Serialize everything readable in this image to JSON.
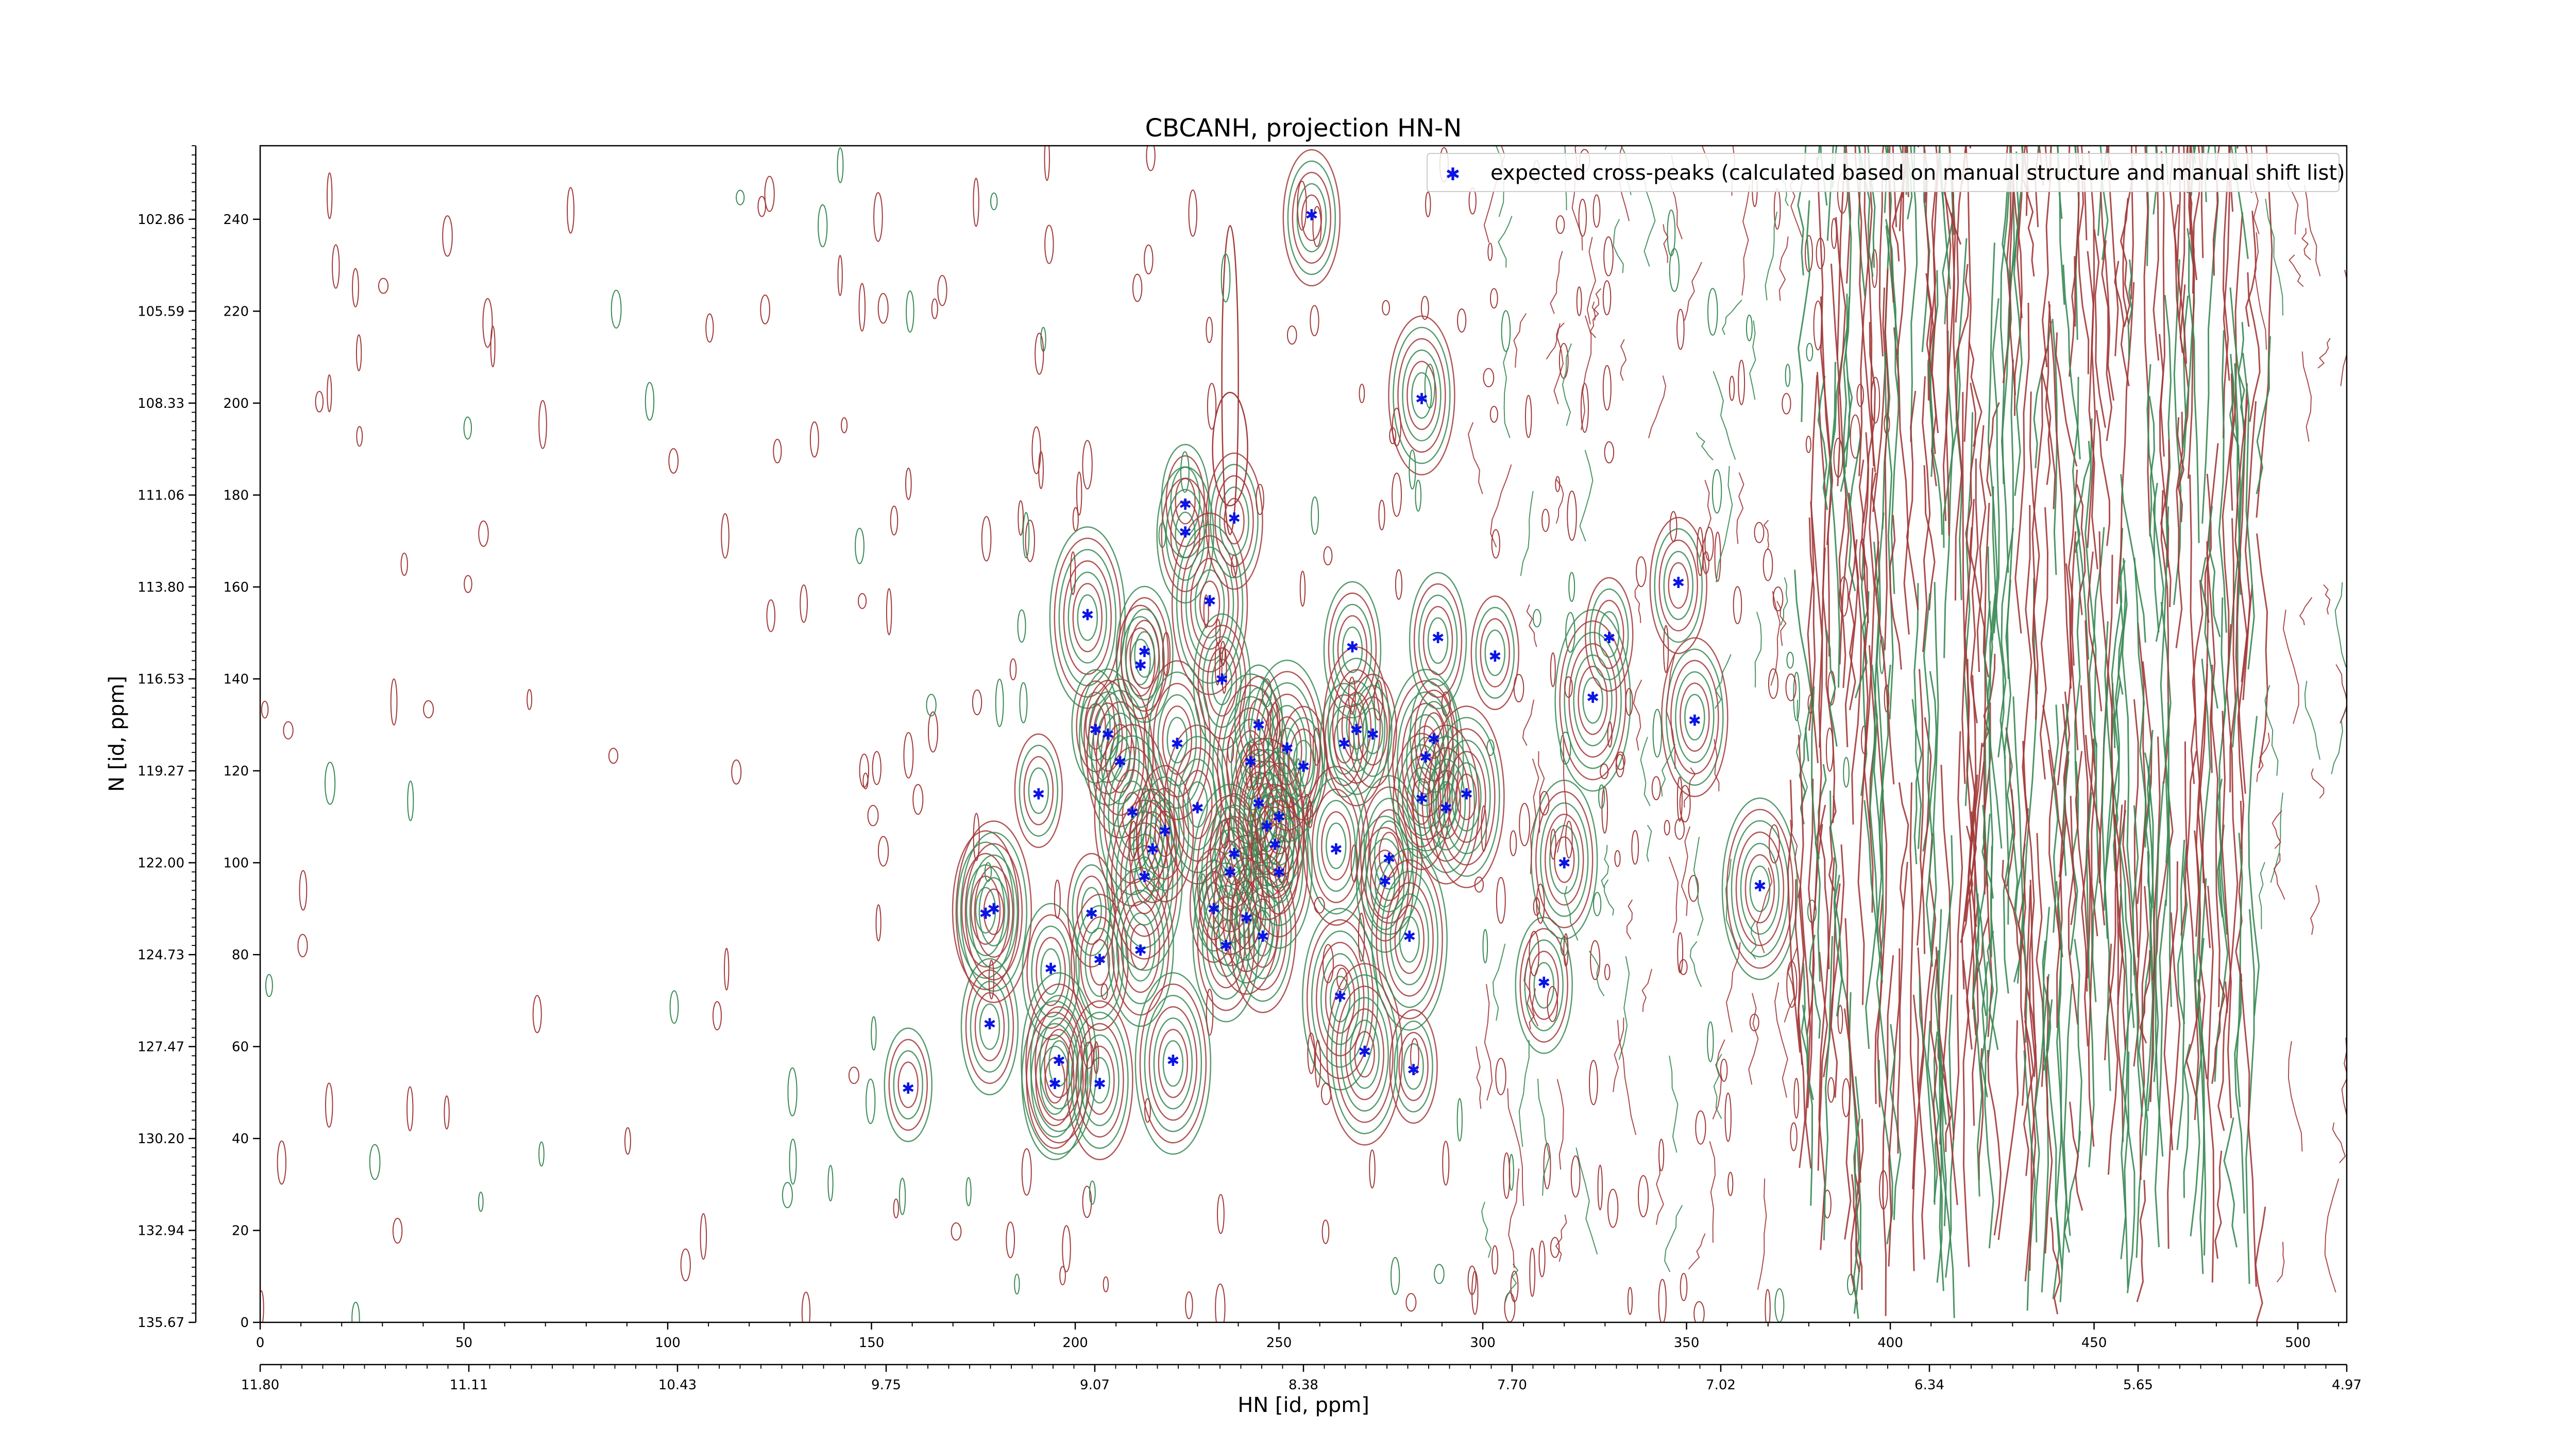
{
  "chart_data": {
    "type": "scatter",
    "title": "CBCANH, projection HN-N",
    "xlabel": "HN [id, ppm]",
    "ylabel": "N [id, ppm]",
    "xlim": [
      0,
      512
    ],
    "ylim": [
      0,
      256
    ],
    "x_ticks": [
      0,
      50,
      100,
      150,
      200,
      250,
      300,
      350,
      400,
      450,
      500
    ],
    "y_ticks": [
      0,
      20,
      40,
      60,
      80,
      100,
      120,
      140,
      160,
      180,
      200,
      220,
      240
    ],
    "x_ppm_tick_labels": [
      "11.80",
      "11.11",
      "10.43",
      "9.75",
      "9.07",
      "8.38",
      "7.70",
      "7.02",
      "6.34",
      "5.65",
      "4.97"
    ],
    "y_ppm_tick_labels": [
      "135.67",
      "132.94",
      "130.20",
      "127.47",
      "124.73",
      "122.00",
      "119.27",
      "116.53",
      "113.80",
      "111.06",
      "108.33",
      "105.59",
      "102.86"
    ],
    "legend": {
      "position": "top-right",
      "entries": [
        "expected cross-peaks (calculated based on manual structure and manual shift list)"
      ]
    },
    "colors": {
      "marker": "#0a14e6",
      "contour_red": "#a33a3a",
      "contour_green": "#3a8a55"
    },
    "series": [
      {
        "name": "expected cross-peaks (calculated based on manual structure and manual shift list)",
        "points": [
          [
            159,
            51
          ],
          [
            179,
            65
          ],
          [
            178,
            89
          ],
          [
            180,
            90
          ],
          [
            191,
            115
          ],
          [
            194,
            77
          ],
          [
            195,
            52
          ],
          [
            196,
            57
          ],
          [
            204,
            89
          ],
          [
            206,
            79
          ],
          [
            206,
            52
          ],
          [
            203,
            154
          ],
          [
            205,
            129
          ],
          [
            208,
            128
          ],
          [
            211,
            122
          ],
          [
            214,
            111
          ],
          [
            216,
            143
          ],
          [
            217,
            146
          ],
          [
            216,
            81
          ],
          [
            217,
            97
          ],
          [
            219,
            103
          ],
          [
            222,
            107
          ],
          [
            225,
            126
          ],
          [
            224,
            57
          ],
          [
            227,
            178
          ],
          [
            227,
            172
          ],
          [
            230,
            112
          ],
          [
            233,
            157
          ],
          [
            234,
            90
          ],
          [
            236,
            140
          ],
          [
            237,
            82
          ],
          [
            238,
            98
          ],
          [
            239,
            102
          ],
          [
            239,
            175
          ],
          [
            242,
            88
          ],
          [
            243,
            122
          ],
          [
            245,
            130
          ],
          [
            245,
            113
          ],
          [
            246,
            84
          ],
          [
            247,
            108
          ],
          [
            249,
            104
          ],
          [
            250,
            110
          ],
          [
            250,
            98
          ],
          [
            252,
            125
          ],
          [
            256,
            121
          ],
          [
            258,
            241
          ],
          [
            264,
            103
          ],
          [
            265,
            71
          ],
          [
            266,
            126
          ],
          [
            268,
            147
          ],
          [
            269,
            129
          ],
          [
            271,
            59
          ],
          [
            273,
            128
          ],
          [
            276,
            96
          ],
          [
            277,
            101
          ],
          [
            282,
            84
          ],
          [
            283,
            55
          ],
          [
            285,
            114
          ],
          [
            285,
            201
          ],
          [
            286,
            123
          ],
          [
            288,
            127
          ],
          [
            289,
            149
          ],
          [
            291,
            112
          ],
          [
            296,
            115
          ],
          [
            303,
            145
          ],
          [
            315,
            74
          ],
          [
            320,
            100
          ],
          [
            327,
            136
          ],
          [
            331,
            149
          ],
          [
            348,
            161
          ],
          [
            352,
            131
          ],
          [
            368,
            95
          ]
        ]
      }
    ]
  }
}
